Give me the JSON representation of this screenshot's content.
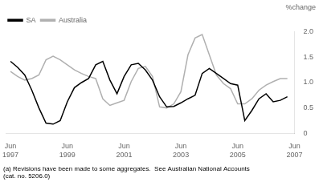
{
  "chart_data": {
    "type": "line",
    "y_label": "%change",
    "annotations": [
      "(a) Revisions have been made to some aggregates.  See Australian National Accounts\n(cat. no. 5206.0)"
    ],
    "x": [
      1997.42,
      1997.67,
      1997.92,
      1998.17,
      1998.42,
      1998.67,
      1998.92,
      1999.17,
      1999.42,
      1999.67,
      1999.92,
      2000.17,
      2000.42,
      2000.67,
      2000.92,
      2001.17,
      2001.42,
      2001.67,
      2001.92,
      2002.17,
      2002.42,
      2002.67,
      2002.92,
      2003.17,
      2003.42,
      2003.67,
      2003.92,
      2004.17,
      2004.42,
      2004.67,
      2004.92,
      2005.17,
      2005.42,
      2005.67,
      2005.92,
      2006.17,
      2006.42,
      2006.67,
      2006.92,
      2007.17
    ],
    "series": [
      {
        "name": "SA",
        "color": "#000000",
        "values": [
          1.42,
          1.3,
          1.15,
          0.85,
          0.5,
          0.2,
          0.18,
          0.25,
          0.62,
          0.9,
          1.0,
          1.08,
          1.35,
          1.42,
          1.05,
          0.78,
          1.12,
          1.35,
          1.38,
          1.25,
          1.05,
          0.72,
          0.52,
          0.53,
          0.6,
          0.68,
          0.75,
          1.18,
          1.28,
          1.18,
          1.08,
          0.98,
          0.95,
          0.25,
          0.45,
          0.68,
          0.78,
          0.62,
          0.65,
          0.72
        ]
      },
      {
        "name": "Australia",
        "color": "#b0b0b0",
        "values": [
          1.22,
          1.12,
          1.05,
          1.08,
          1.15,
          1.45,
          1.52,
          1.45,
          1.35,
          1.25,
          1.18,
          1.12,
          1.08,
          0.68,
          0.55,
          0.6,
          0.65,
          1.02,
          1.28,
          1.32,
          1.12,
          0.52,
          0.5,
          0.58,
          0.82,
          1.55,
          1.88,
          1.95,
          1.55,
          1.15,
          0.98,
          0.88,
          0.58,
          0.58,
          0.68,
          0.85,
          0.95,
          1.02,
          1.08,
          1.08
        ]
      }
    ],
    "xlim": [
      1997.25,
      2007.42
    ],
    "xticks": [
      {
        "value": 1997.42,
        "label": "Jun\n1997"
      },
      {
        "value": 1999.42,
        "label": "Jun\n1999"
      },
      {
        "value": 2001.42,
        "label": "Jun\n2001"
      },
      {
        "value": 2003.42,
        "label": "Jun\n2003"
      },
      {
        "value": 2005.42,
        "label": "Jun\n2005"
      },
      {
        "value": 2007.42,
        "label": "Jun\n2007"
      }
    ],
    "ylim": [
      0,
      2.0
    ],
    "yticks": [
      0,
      {
        "value": 0.5,
        "label": "0.5"
      },
      {
        "value": 1.0,
        "label": "1.0"
      },
      {
        "value": 1.5,
        "label": "1.5"
      },
      {
        "value": 2.0,
        "label": "2.0"
      }
    ],
    "grid": false,
    "legend": "upper left"
  }
}
